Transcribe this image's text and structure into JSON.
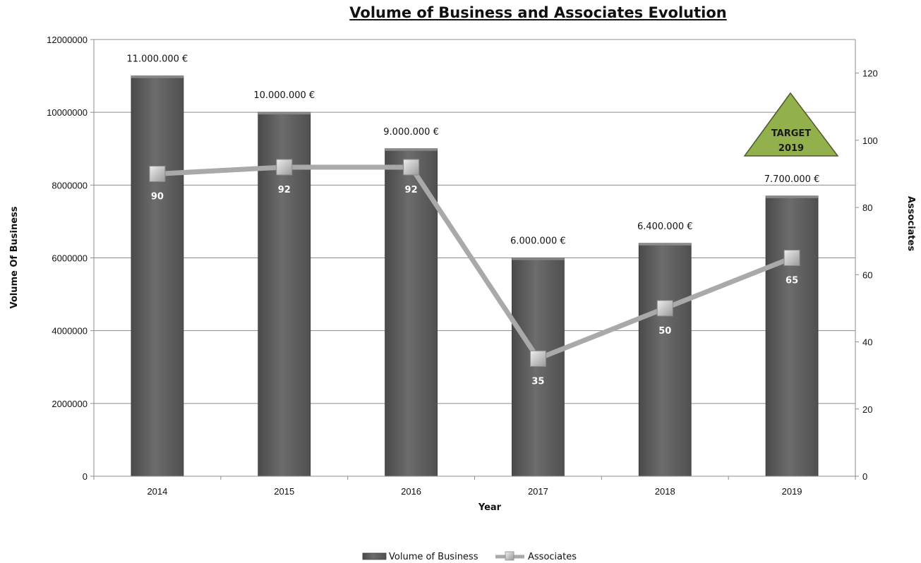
{
  "chart_data": {
    "type": "bar",
    "title": "Volume of Business and Associates Evolution",
    "xlabel": "Year",
    "ylabel": "Volume Of Business",
    "y2label": "Associates",
    "categories": [
      "2014",
      "2015",
      "2016",
      "2017",
      "2018",
      "2019"
    ],
    "ylim": [
      0,
      12000000
    ],
    "yticks": [
      "0",
      "2000000",
      "4000000",
      "6000000",
      "8000000",
      "10000000",
      "12000000"
    ],
    "y2lim": [
      0,
      130
    ],
    "y2ticks": [
      "0",
      "20",
      "40",
      "60",
      "80",
      "100",
      "120"
    ],
    "grid": true,
    "legend_position": "bottom",
    "series": [
      {
        "name": "Volume of Business",
        "type": "bar",
        "axis": "left",
        "values": [
          11000000,
          10000000,
          9000000,
          6000000,
          6400000,
          7700000
        ],
        "labels": [
          "11.000.000 €",
          "10.000.000 €",
          "9.000.000 €",
          "6.000.000 €",
          "6.400.000 €",
          "7.700.000 €"
        ],
        "color": "#5e5e5e"
      },
      {
        "name": "Associates",
        "type": "line",
        "axis": "right",
        "values": [
          90,
          92,
          92,
          35,
          50,
          65
        ],
        "labels": [
          "90",
          "92",
          "92",
          "35",
          "50",
          "65"
        ],
        "color": "#a9a9a9"
      }
    ],
    "annotation": {
      "label_line1": "TARGET",
      "label_line2": "2019",
      "shape": "triangle",
      "color": "#92b04c"
    }
  }
}
